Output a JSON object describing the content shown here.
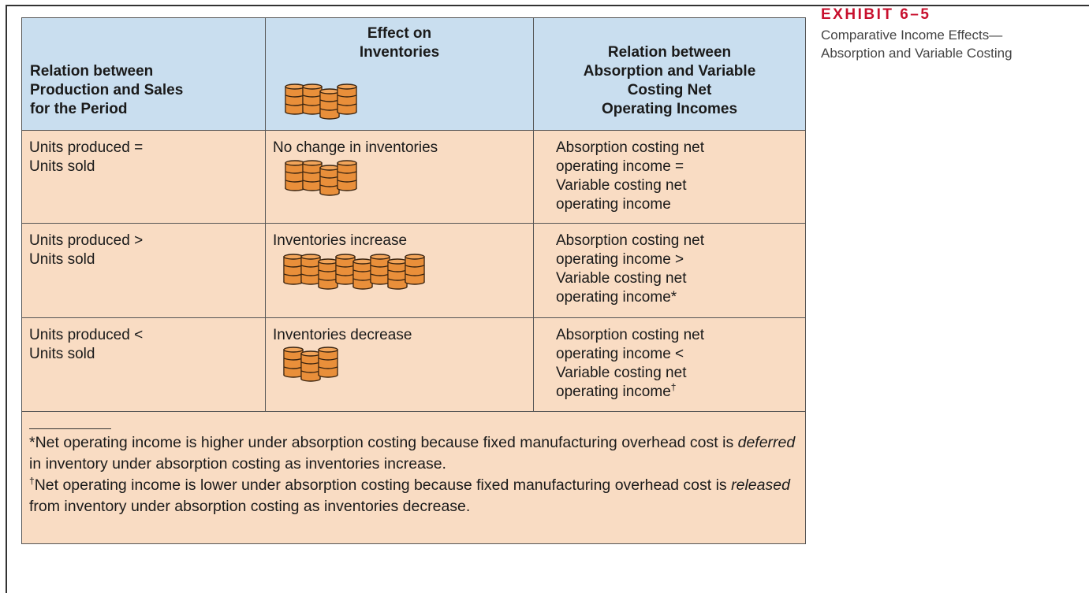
{
  "exhibit": {
    "label": "EXHIBIT 6–5",
    "title": "Comparative Income Effects—Absorption and Variable Costing"
  },
  "table": {
    "headers": [
      [
        "Relation between",
        "Production and Sales",
        "for the Period"
      ],
      [
        "Effect on",
        "Inventories"
      ],
      [
        "Relation between",
        "Absorption and Variable",
        "Costing Net",
        "Operating Incomes"
      ]
    ],
    "rows": [
      {
        "production_vs_sales": [
          "Units produced =",
          "Units sold"
        ],
        "inventories": [
          "No change in inventories"
        ],
        "income": [
          "Absorption costing net",
          "operating income =",
          "Variable costing net",
          "operating income"
        ]
      },
      {
        "production_vs_sales": [
          "Units produced >",
          "Units sold"
        ],
        "inventories": [
          "Inventories increase"
        ],
        "income": [
          "Absorption costing net",
          "operating income >",
          "Variable costing net",
          "operating income*"
        ]
      },
      {
        "production_vs_sales": [
          "Units produced <",
          "Units sold"
        ],
        "inventories": [
          "Inventories decrease"
        ],
        "income": [
          "Absorption costing net",
          "operating income <",
          "Variable costing net",
          "operating income"
        ],
        "income_mark": "†"
      }
    ],
    "footnotes": [
      {
        "before": "*Net operating income is higher under absorption costing because fixed manufacturing overhead cost is ",
        "emphasis": "deferred",
        "after": " in inventory under absorption costing as inventories increase."
      },
      {
        "mark": "†",
        "before": "Net operating income is lower under absorption costing because fixed manufacturing overhead cost is ",
        "emphasis": "released",
        "after": " from inventory under absorption costing as inventories decrease."
      }
    ]
  }
}
